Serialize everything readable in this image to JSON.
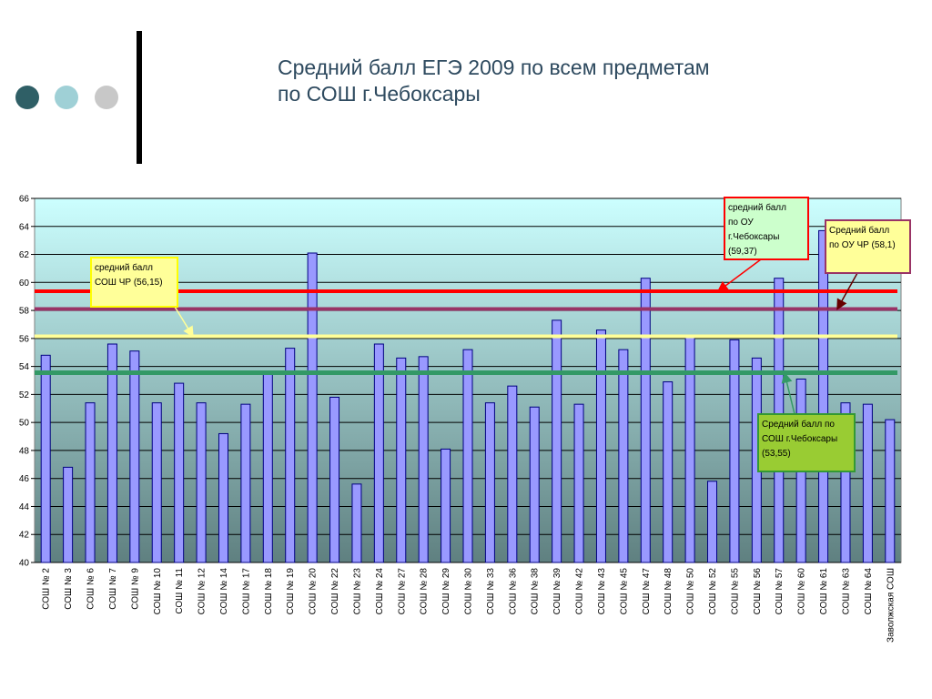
{
  "title": "Средний балл ЕГЭ 2009 по всем предметам\nпо СОШ г.Чебоксары",
  "decor": {
    "dot_colors": [
      "#2f5f66",
      "#9fd0d6",
      "#c8c8c8"
    ]
  },
  "chart_data": {
    "type": "bar",
    "title": "",
    "xlabel": "",
    "ylabel": "",
    "ylim": [
      40,
      66
    ],
    "yticks": [
      40,
      42,
      44,
      46,
      48,
      50,
      52,
      54,
      56,
      58,
      60,
      62,
      64,
      66
    ],
    "grid": true,
    "bar_color": "#9999ff",
    "categories": [
      "СОШ № 2",
      "СОШ № 3",
      "СОШ № 6",
      "СОШ № 7",
      "СОШ № 9",
      "СОШ № 10",
      "СОШ № 11",
      "СОШ № 12",
      "СОШ № 14",
      "СОШ № 17",
      "СОШ № 18",
      "СОШ № 19",
      "СОШ № 20",
      "СОШ № 22",
      "СОШ № 23",
      "СОШ № 24",
      "СОШ № 27",
      "СОШ № 28",
      "СОШ № 29",
      "СОШ № 30",
      "СОШ № 33",
      "СОШ № 36",
      "СОШ № 38",
      "СОШ № 39",
      "СОШ № 42",
      "СОШ № 43",
      "СОШ № 45",
      "СОШ № 47",
      "СОШ № 48",
      "СОШ № 50",
      "СОШ № 52",
      "СОШ № 55",
      "СОШ № 56",
      "СОШ № 57",
      "СОШ № 60",
      "СОШ № 61",
      "СОШ № 63",
      "СОШ № 64",
      "Заволжская СОШ"
    ],
    "values": [
      54.8,
      46.8,
      51.4,
      55.6,
      55.1,
      51.4,
      52.8,
      51.4,
      49.2,
      51.3,
      53.5,
      55.3,
      62.1,
      51.8,
      45.6,
      55.6,
      54.6,
      54.7,
      48.1,
      55.2,
      51.4,
      52.6,
      51.1,
      57.3,
      51.3,
      56.6,
      55.2,
      60.3,
      52.9,
      56.1,
      45.8,
      55.9,
      54.6,
      60.3,
      53.1,
      63.7,
      51.4,
      51.3,
      50.2
    ],
    "reference_lines": [
      {
        "value": 59.37,
        "color": "#ff0000",
        "label": "средний балл\nпо ОУ\nг.Чебоксары\n(59,37)"
      },
      {
        "value": 58.1,
        "color": "#993366",
        "label": "Средний балл\nпо ОУ ЧР (58,1)"
      },
      {
        "value": 56.15,
        "color": "#ffff99",
        "label": "средний балл\nСОШ ЧР (56,15)"
      },
      {
        "value": 53.55,
        "color": "#339966",
        "label": "Средний балл по\nСОШ г.Чебоксары\n(53,55)"
      }
    ]
  }
}
